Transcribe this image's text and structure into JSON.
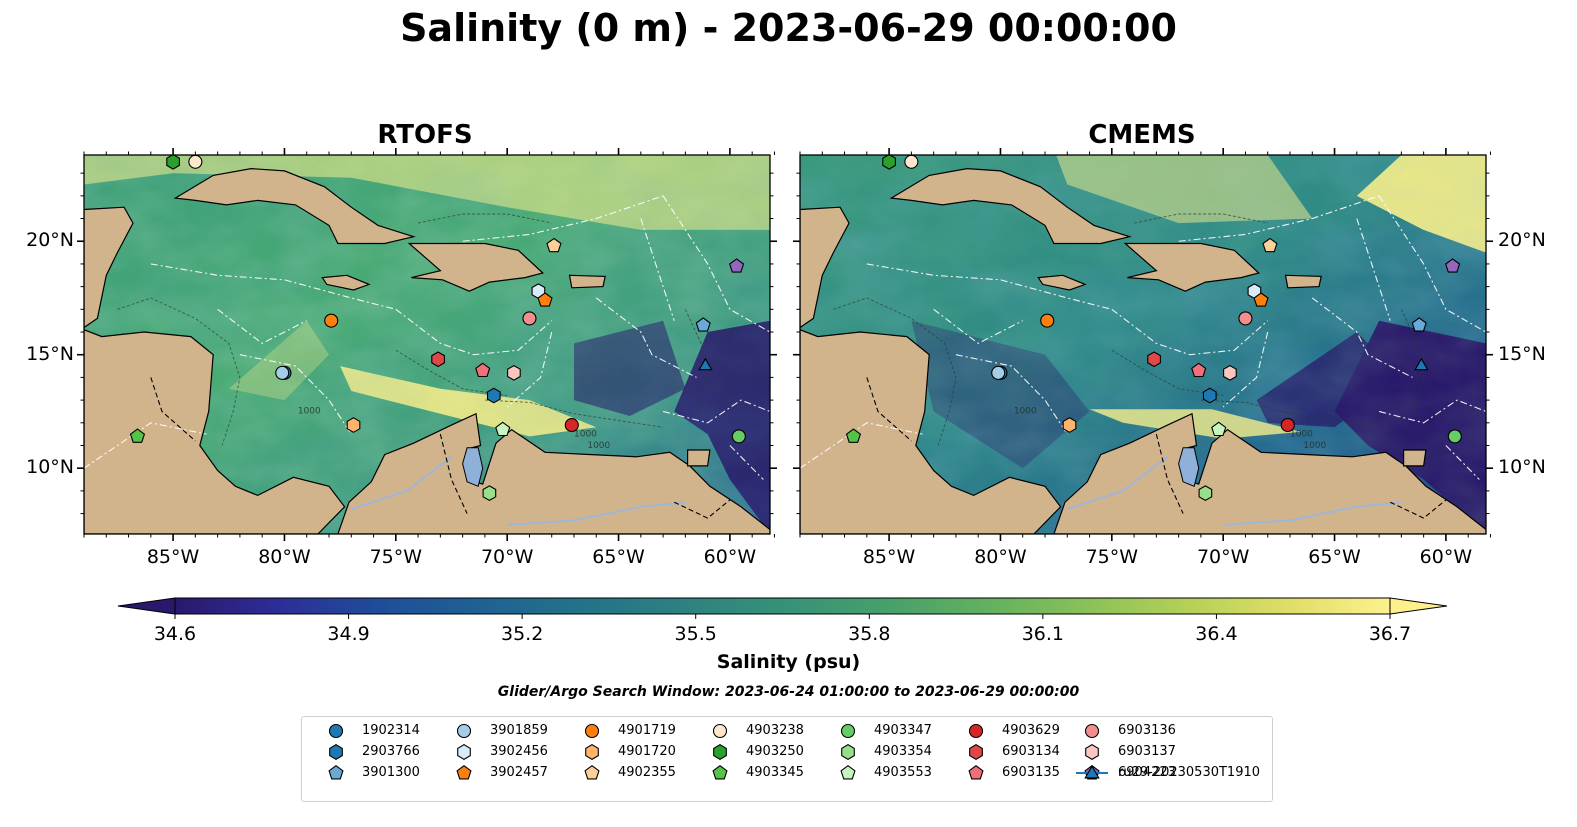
{
  "title": "Salinity (0 m) - 2023-06-29 00:00:00",
  "panels": [
    {
      "title": "RTOFS",
      "side": "left"
    },
    {
      "title": "CMEMS",
      "side": "right"
    }
  ],
  "axes": {
    "lon_ticks": [
      "85°W",
      "80°W",
      "75°W",
      "70°W",
      "65°W",
      "60°W"
    ],
    "lat_ticks": [
      "20°N",
      "15°N",
      "10°N"
    ],
    "lon_range": [
      -89,
      -58.2
    ],
    "lat_range": [
      7.1,
      23.8
    ]
  },
  "isobath_label": "1000",
  "colorbar": {
    "label": "Salinity (psu)",
    "ticks": [
      "34.6",
      "34.9",
      "35.2",
      "35.5",
      "35.8",
      "36.1",
      "36.4",
      "36.7"
    ],
    "range": [
      34.6,
      36.7
    ],
    "extend": "both",
    "colormap": "haline"
  },
  "search_window": "Glider/Argo Search Window: 2023-06-24 01:00:00 to 2023-06-29 00:00:00",
  "colors": {
    "land": "#d2b48c",
    "lake": "#8fb1d9",
    "deep": "#2a1a6b",
    "salty": "#fbf08a"
  },
  "legend": [
    {
      "id": "1902314",
      "marker": "circle",
      "color": "#1f77b4"
    },
    {
      "id": "2903766",
      "marker": "hexagon",
      "color": "#1f77b4"
    },
    {
      "id": "3901300",
      "marker": "pentagon",
      "color": "#6aa8d8"
    },
    {
      "id": "3901859",
      "marker": "circle",
      "color": "#a6cde8"
    },
    {
      "id": "3902456",
      "marker": "hexagon",
      "color": "#d7ecf8"
    },
    {
      "id": "3902457",
      "marker": "pentagon",
      "color": "#ff7f0e"
    },
    {
      "id": "4901719",
      "marker": "circle",
      "color": "#ff7f0e"
    },
    {
      "id": "4901720",
      "marker": "hexagon",
      "color": "#ffb36b"
    },
    {
      "id": "4902355",
      "marker": "pentagon",
      "color": "#ffcf99"
    },
    {
      "id": "4903238",
      "marker": "circle",
      "color": "#ffe6cc"
    },
    {
      "id": "4903250",
      "marker": "hexagon",
      "color": "#2ca02c"
    },
    {
      "id": "4903345",
      "marker": "pentagon",
      "color": "#55c24a"
    },
    {
      "id": "4903347",
      "marker": "circle",
      "color": "#66cc66"
    },
    {
      "id": "4903354",
      "marker": "hexagon",
      "color": "#98df8a"
    },
    {
      "id": "4903553",
      "marker": "pentagon",
      "color": "#c7f5c0"
    },
    {
      "id": "4903629",
      "marker": "circle",
      "color": "#d62728"
    },
    {
      "id": "6903134",
      "marker": "hexagon",
      "color": "#e04848"
    },
    {
      "id": "6903135",
      "marker": "pentagon",
      "color": "#f0707a"
    },
    {
      "id": "6903136",
      "marker": "circle",
      "color": "#f28e8e"
    },
    {
      "id": "6903137",
      "marker": "hexagon",
      "color": "#f9c6c0"
    },
    {
      "id": "6904223",
      "marker": "pentagon",
      "color": "#9467bd"
    },
    {
      "id": "ru29-20230530T1910",
      "marker": "triangle-line",
      "color": "#1f77b4"
    }
  ],
  "floats": [
    {
      "id": "1902314",
      "lon": -80,
      "lat": 14.2
    },
    {
      "id": "2903766",
      "lon": -70.6,
      "lat": 13.2
    },
    {
      "id": "3901300",
      "lon": -61.2,
      "lat": 16.3
    },
    {
      "id": "3901859",
      "lon": -80.1,
      "lat": 14.2
    },
    {
      "id": "3902456",
      "lon": -68.6,
      "lat": 17.8
    },
    {
      "id": "3902457",
      "lon": -68.3,
      "lat": 17.4
    },
    {
      "id": "4901719",
      "lon": -77.9,
      "lat": 16.5
    },
    {
      "id": "4901720",
      "lon": -76.9,
      "lat": 11.9
    },
    {
      "id": "4902355",
      "lon": -67.9,
      "lat": 19.8
    },
    {
      "id": "4903238",
      "lon": -84,
      "lat": 23.5
    },
    {
      "id": "4903250",
      "lon": -85,
      "lat": 23.5
    },
    {
      "id": "4903345",
      "lon": -86.6,
      "lat": 11.4
    },
    {
      "id": "4903347",
      "lon": -59.6,
      "lat": 11.4
    },
    {
      "id": "4903354",
      "lon": -70.8,
      "lat": 8.9
    },
    {
      "id": "4903553",
      "lon": -70.2,
      "lat": 11.7
    },
    {
      "id": "4903629",
      "lon": -67.1,
      "lat": 11.9
    },
    {
      "id": "6903134",
      "lon": -73.1,
      "lat": 14.8
    },
    {
      "id": "6903135",
      "lon": -71.1,
      "lat": 14.3
    },
    {
      "id": "6903136",
      "lon": -69.0,
      "lat": 16.6
    },
    {
      "id": "6903137",
      "lon": -69.7,
      "lat": 14.2
    },
    {
      "id": "6904223",
      "lon": -59.7,
      "lat": 18.9
    },
    {
      "id": "ru29-20230530T1910",
      "lon": -61.1,
      "lat": 14.5
    }
  ]
}
